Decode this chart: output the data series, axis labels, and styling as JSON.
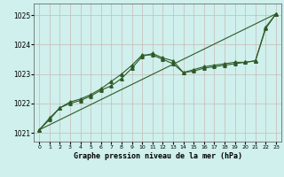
{
  "background_color": "#cff0ec",
  "grid_color": "#b8d8d4",
  "line_color": "#2d5a27",
  "title": "Graphe pression niveau de la mer (hPa)",
  "xlim": [
    -0.5,
    23.5
  ],
  "ylim": [
    1020.7,
    1025.4
  ],
  "yticks": [
    1021,
    1022,
    1023,
    1024,
    1025
  ],
  "xticks": [
    0,
    1,
    2,
    3,
    4,
    5,
    6,
    7,
    8,
    9,
    10,
    11,
    12,
    13,
    14,
    15,
    16,
    17,
    18,
    19,
    20,
    21,
    22,
    23
  ],
  "series_trend_x": [
    0,
    23
  ],
  "series_trend_y": [
    1021.1,
    1025.05
  ],
  "series2_x": [
    0,
    1,
    2,
    3,
    4,
    5,
    6,
    7,
    8,
    9,
    10,
    11,
    12,
    13,
    14,
    15,
    16,
    17,
    18,
    19,
    20,
    21,
    22,
    23
  ],
  "series2_y": [
    1021.1,
    1021.45,
    1021.85,
    1022.0,
    1022.1,
    1022.25,
    1022.45,
    1022.6,
    1022.85,
    1023.2,
    1023.6,
    1023.7,
    1023.55,
    1023.45,
    1023.05,
    1023.1,
    1023.2,
    1023.25,
    1023.3,
    1023.35,
    1023.4,
    1023.45,
    1024.6,
    1025.05
  ],
  "series3_x": [
    0,
    1,
    2,
    3,
    4,
    5,
    6,
    7,
    8,
    9,
    10,
    11,
    12,
    13,
    14,
    15,
    16,
    17,
    18,
    19,
    20,
    21,
    22,
    23
  ],
  "series3_y": [
    1021.1,
    1021.5,
    1021.85,
    1022.05,
    1022.15,
    1022.3,
    1022.5,
    1022.75,
    1023.0,
    1023.3,
    1023.65,
    1023.65,
    1023.5,
    1023.35,
    1023.05,
    1023.15,
    1023.25,
    1023.3,
    1023.35,
    1023.4,
    1023.4,
    1023.45,
    1024.55,
    1025.05
  ]
}
